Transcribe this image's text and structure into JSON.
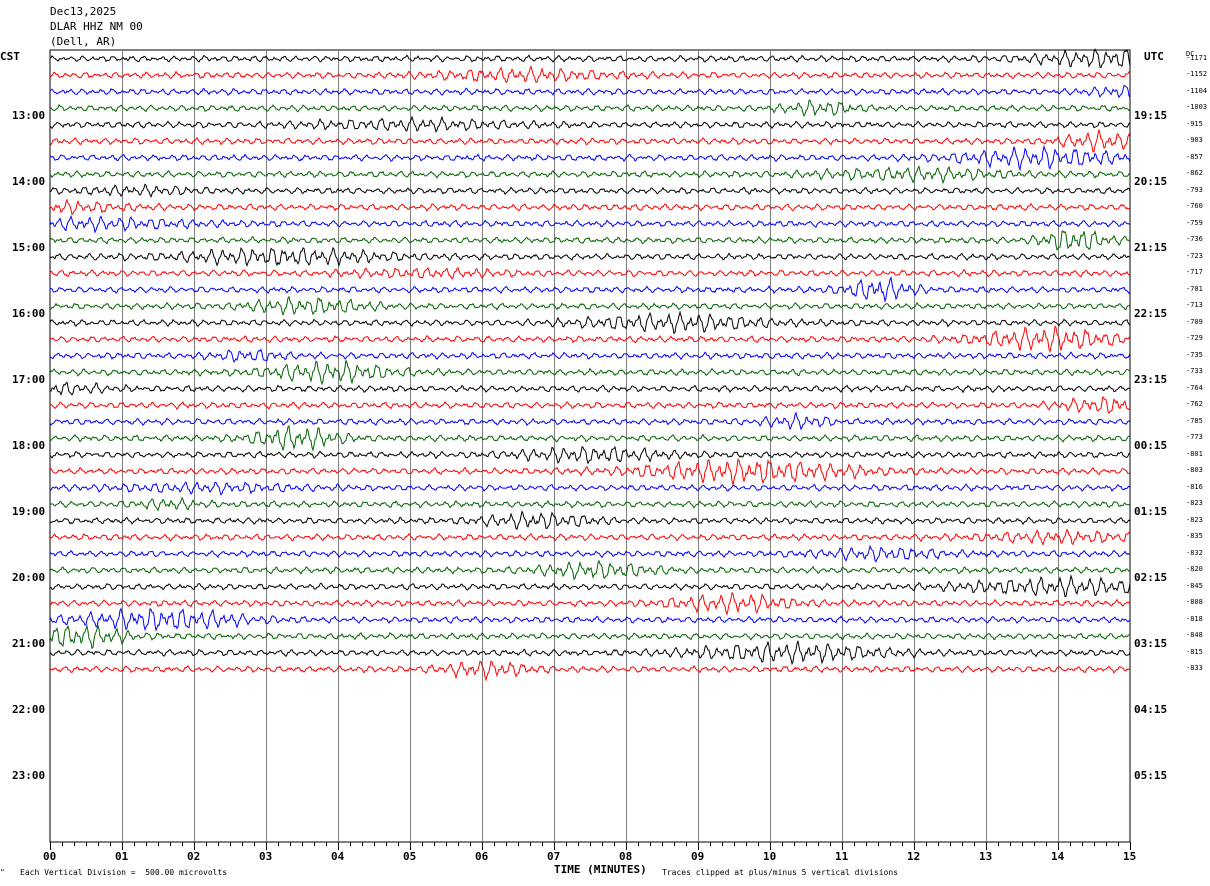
{
  "header": {
    "date": "Dec13,2025",
    "station": "DLAR HHZ NM 00",
    "location": "(Dell, AR)"
  },
  "axes": {
    "left_label": "CST",
    "right_label": "UTC",
    "dc_label": "DC",
    "x_label": "TIME (MINUTES)",
    "cst_ticks": [
      "13:00",
      "14:00",
      "15:00",
      "16:00",
      "17:00",
      "18:00",
      "19:00",
      "20:00",
      "21:00",
      "22:00",
      "23:00"
    ],
    "utc_ticks": [
      "19:15",
      "20:15",
      "21:15",
      "22:15",
      "23:15",
      "00:15",
      "01:15",
      "02:15",
      "03:15",
      "04:15",
      "05:15"
    ],
    "minute_ticks": [
      "00",
      "01",
      "02",
      "03",
      "04",
      "05",
      "06",
      "07",
      "08",
      "09",
      "10",
      "11",
      "12",
      "13",
      "14",
      "15"
    ]
  },
  "footer": {
    "scale_note": "Each Vertical Division =  500.00 microvolts",
    "clip_note": "Traces clipped at plus/minus 5 vertical divisions",
    "corner_mark": "\""
  },
  "colors": {
    "trace_cycle": [
      "#000000",
      "#ff0000",
      "#0000ff",
      "#006400"
    ],
    "grid": "#7f7f7f"
  },
  "chart_data": {
    "type": "line",
    "title": "DLAR HHZ NM 00",
    "xlabel": "TIME (MINUTES)",
    "xlim": [
      0,
      15
    ],
    "rows_total": 48,
    "rows_per_hour": 4,
    "start_cst": "12:15",
    "dc_offsets": [
      "-1171",
      "-1152",
      "-1104",
      "-1003",
      "-915",
      "-903",
      "-857",
      "-862",
      "-793",
      "-760",
      "-759",
      "-736",
      "-723",
      "-717",
      "-701",
      "-713",
      "-709",
      "-729",
      "-735",
      "-733",
      "-764",
      "-762",
      "-785",
      "-773",
      "-801",
      "-803",
      "-816",
      "-823",
      "-823",
      "-835",
      "-832",
      "-820",
      "-845",
      "-808",
      "-818",
      "-848",
      "-815",
      "-833"
    ],
    "grid": true
  }
}
